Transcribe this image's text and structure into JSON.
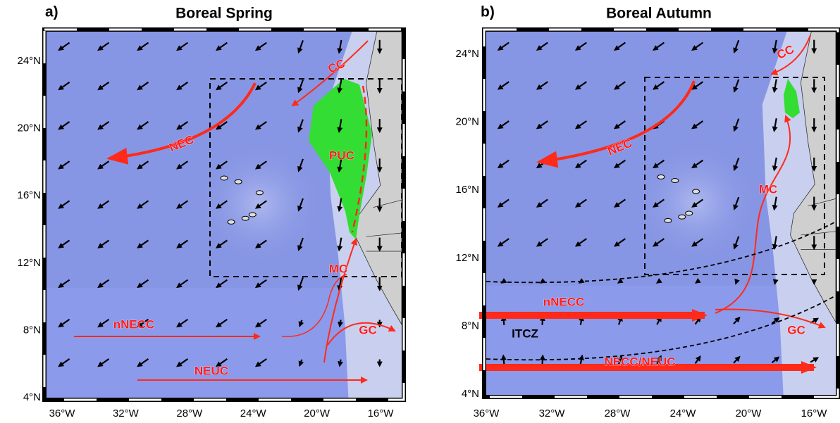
{
  "panels": [
    {
      "label": "a)",
      "title": "Boreal Spring",
      "lat_labels": [
        "24°N",
        "20°N",
        "16°N",
        "12°N",
        "8°N",
        "4°N"
      ],
      "lon_labels": [
        "36°W",
        "32°W",
        "28°W",
        "24°W",
        "20°W",
        "16°W"
      ],
      "currents": [
        "CC",
        "NEC",
        "PUC",
        "MC",
        "nNECC",
        "GC",
        "NEUC"
      ]
    },
    {
      "label": "b)",
      "title": "Boreal Autumn",
      "lat_labels": [
        "24°N",
        "20°N",
        "16°N",
        "12°N",
        "8°N",
        "4°N"
      ],
      "lon_labels": [
        "36°W",
        "32°W",
        "28°W",
        "24°W",
        "20°W",
        "16°W"
      ],
      "currents": [
        "CC",
        "NEC",
        "MC",
        "nNECC",
        "ITCZ",
        "GC",
        "NECC/NEUC"
      ]
    }
  ]
}
